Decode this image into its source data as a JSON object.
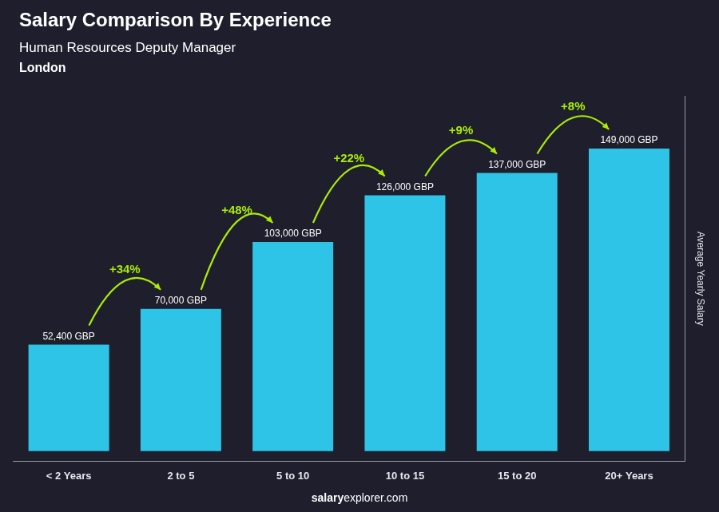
{
  "chart_data": {
    "type": "bar",
    "title": "Salary Comparison By Experience",
    "subtitle": [
      "Human Resources Deputy Manager",
      "London"
    ],
    "categories": [
      "< 2 Years",
      "2 to 5",
      "5 to 10",
      "10 to 15",
      "15 to 20",
      "20+ Years"
    ],
    "values": [
      52400,
      70000,
      103000,
      126000,
      137000,
      149000
    ],
    "value_labels": [
      "52,400 GBP",
      "70,000 GBP",
      "103,000 GBP",
      "126,000 GBP",
      "137,000 GBP",
      "149,000 GBP"
    ],
    "data_labels": true,
    "color": "#2ec4e8",
    "ylabel": "Average Yearly Salary",
    "ylim": [
      -5000,
      175000
    ],
    "tick_labels": "x",
    "grid": false,
    "annotations": [
      {
        "text": "salary"
      },
      {
        "text": "explorer.com"
      },
      {
        "text": "+34%",
        "from": "< 2 Years",
        "to": "2 to 5",
        "color": "#aaee00"
      },
      {
        "text": "+48%",
        "from": "2 to 5",
        "to": "5 to 10",
        "color": "#aaee00"
      },
      {
        "text": "+22%",
        "from": "5 to 10",
        "to": "10 to 15",
        "color": "#aaee00"
      },
      {
        "text": "+9%",
        "from": "10 to 15",
        "to": "15 to 20",
        "color": "#aaee00"
      },
      {
        "text": "+8%",
        "from": "15 to 20",
        "to": "20+ Years",
        "color": "#aaee00"
      }
    ]
  }
}
